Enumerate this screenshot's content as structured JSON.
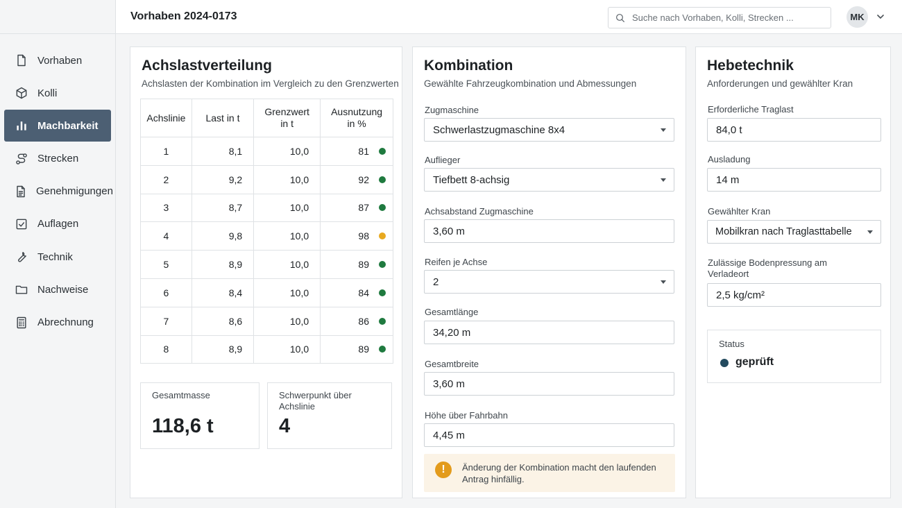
{
  "header": {
    "title": "Vorhaben 2024-0173",
    "search_placeholder": "Suche nach Vorhaben, Kolli, Strecken ...",
    "user_initials": "MK",
    "user_menu_icon": "chevron-down-icon"
  },
  "sidebar": {
    "items": [
      {
        "label": "Vorhaben",
        "icon": "document-icon",
        "active": false
      },
      {
        "label": "Kolli",
        "icon": "cube-icon",
        "active": false
      },
      {
        "label": "Machbarkeit",
        "icon": "bar-chart-icon",
        "active": true
      },
      {
        "label": "Strecken",
        "icon": "route-icon",
        "active": false
      },
      {
        "label": "Genehmigungen",
        "icon": "document-text-icon",
        "active": false
      },
      {
        "label": "Auflagen",
        "icon": "checkbox-icon",
        "active": false
      },
      {
        "label": "Technik",
        "icon": "wrench-icon",
        "active": false
      },
      {
        "label": "Nachweise",
        "icon": "folder-icon",
        "active": false
      },
      {
        "label": "Abrechnung",
        "icon": "calculator-icon",
        "active": false
      }
    ]
  },
  "axle_panel": {
    "title": "Achslastverteilung",
    "subtitle": "Achslasten der Kombination im Vergleich zu den Grenzwerten",
    "columns": [
      "Achslinie",
      "Last in t",
      "Grenzwert in t",
      "Ausnutzung in %"
    ],
    "rows": [
      {
        "axle": "1",
        "load": "8,1",
        "limit": "10,0",
        "util": "81",
        "status": "ok"
      },
      {
        "axle": "2",
        "load": "9,2",
        "limit": "10,0",
        "util": "92",
        "status": "ok"
      },
      {
        "axle": "3",
        "load": "8,7",
        "limit": "10,0",
        "util": "87",
        "status": "ok"
      },
      {
        "axle": "4",
        "load": "9,8",
        "limit": "10,0",
        "util": "98",
        "status": "warning"
      },
      {
        "axle": "5",
        "load": "8,9",
        "limit": "10,0",
        "util": "89",
        "status": "ok"
      },
      {
        "axle": "6",
        "load": "8,4",
        "limit": "10,0",
        "util": "84",
        "status": "ok"
      },
      {
        "axle": "7",
        "load": "8,6",
        "limit": "10,0",
        "util": "86",
        "status": "ok"
      },
      {
        "axle": "8",
        "load": "8,9",
        "limit": "10,0",
        "util": "89",
        "status": "ok"
      }
    ],
    "status_colors": {
      "ok": "#1f7a3f",
      "warning": "#e8a91f"
    },
    "total_mass_label": "Gesamtmasse",
    "total_mass_value": "118,6 t",
    "center_label": "Schwerpunkt über Achslinie",
    "center_value": "4"
  },
  "combination_panel": {
    "title": "Kombination",
    "subtitle": "Gewählte Fahrzeugkombination und Abmessungen",
    "fields": [
      {
        "label": "Zugmaschine",
        "value": "Schwerlastzugmaschine 8x4",
        "type": "select"
      },
      {
        "label": "Auflieger",
        "value": "Tiefbett 8-achsig",
        "type": "select"
      },
      {
        "label": "Achsabstand Zugmaschine",
        "value": "3,60 m",
        "type": "input"
      },
      {
        "label": "Reifen je Achse",
        "value": "2",
        "type": "select"
      },
      {
        "label": "Gesamtlänge",
        "value": "34,20 m",
        "type": "input"
      },
      {
        "label": "Gesamtbreite",
        "value": "3,60 m",
        "type": "input"
      },
      {
        "label": "Höhe über Fahrbahn",
        "value": "4,45 m",
        "type": "input"
      }
    ],
    "warning_text": "Änderung der Kombination macht den laufenden Antrag hinfällig.",
    "warning_color": "#e39b1c"
  },
  "lifting_panel": {
    "title": "Hebetechnik",
    "subtitle": "Anforderungen und gewählter Kran",
    "fields": [
      {
        "label": "Erforderliche Traglast",
        "value": "84,0 t",
        "type": "input"
      },
      {
        "label": "Ausladung",
        "value": "14 m",
        "type": "input"
      },
      {
        "label": "Gewählter Kran",
        "value": "Mobilkran nach Traglasttabelle",
        "type": "select"
      },
      {
        "label": "Zulässige Bodenpressung am Verladeort",
        "value": "2,5 kg/cm²",
        "type": "input"
      }
    ],
    "status_label": "Status",
    "status_value": "geprüft",
    "status_color": "#234a5e"
  },
  "colors": {
    "accent_active_nav": "#4c5f73"
  }
}
